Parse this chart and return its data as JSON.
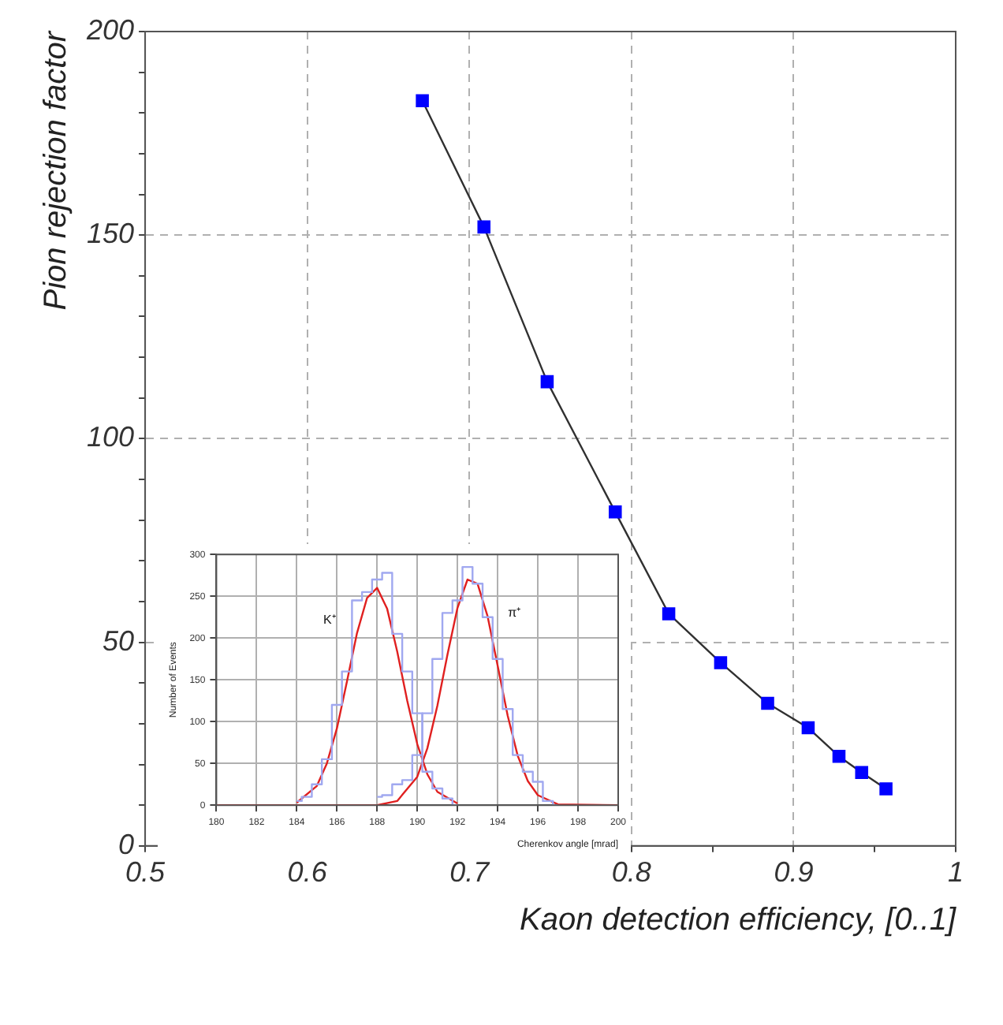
{
  "chart_data": [
    {
      "type": "line",
      "xlabel": "Kaon detection efficiency, [0..1]",
      "ylabel": "Pion rejection factor",
      "marker": "square",
      "line_style": "solid",
      "grid": true,
      "legend": false,
      "xlim": [
        0.5,
        1
      ],
      "ylim": [
        0,
        200
      ],
      "xticks": [
        0.5,
        {
          "value": 0.55,
          "label": null
        },
        0.6,
        {
          "value": 0.65,
          "label": null
        },
        0.7,
        {
          "value": 0.75,
          "label": null
        },
        0.8,
        {
          "value": 0.85,
          "label": null
        },
        0.9,
        {
          "value": 0.95,
          "label": null
        },
        1
      ],
      "yticks": [
        0,
        {
          "value": 10,
          "label": null
        },
        {
          "value": 20,
          "label": null
        },
        {
          "value": 30,
          "label": null
        },
        {
          "value": 40,
          "label": null
        },
        50,
        {
          "value": 60,
          "label": null
        },
        {
          "value": 70,
          "label": null
        },
        {
          "value": 80,
          "label": null
        },
        {
          "value": 90,
          "label": null
        },
        100,
        {
          "value": 110,
          "label": null
        },
        {
          "value": 120,
          "label": null
        },
        {
          "value": 130,
          "label": null
        },
        {
          "value": 140,
          "label": null
        },
        150,
        {
          "value": 160,
          "label": null
        },
        {
          "value": 170,
          "label": null
        },
        {
          "value": 180,
          "label": null
        },
        {
          "value": 190,
          "label": null
        },
        200
      ],
      "x": [
        0.671,
        0.709,
        0.748,
        0.79,
        0.823,
        0.855,
        0.884,
        0.909,
        0.928,
        0.942,
        0.957
      ],
      "series": [
        {
          "color": "#0000ff",
          "values": [
            183,
            152,
            114,
            82,
            57,
            45,
            35,
            29,
            22,
            18,
            14
          ]
        }
      ]
    },
    {
      "type": "line",
      "xlabel": "Cherenkov angle [mrad]",
      "ylabel": "Number of Events",
      "marker": "none",
      "line_style": "solid",
      "grid": true,
      "legend": false,
      "xlim": [
        180,
        200
      ],
      "ylim": [
        0,
        300
      ],
      "xticks": [
        180,
        182,
        184,
        186,
        188,
        190,
        192,
        194,
        196,
        198,
        200
      ],
      "yticks": [
        0,
        50,
        100,
        150,
        200,
        250,
        300
      ],
      "series": [
        {
          "type": "step",
          "color": "#a0a8f0",
          "x": [
            184,
            184.5,
            185,
            185.5,
            186,
            186.5,
            187,
            187.5,
            188,
            188.5,
            189,
            189.5,
            190,
            190.5,
            191,
            191.5,
            192
          ],
          "values": [
            5,
            10,
            25,
            55,
            120,
            160,
            245,
            255,
            270,
            278,
            205,
            160,
            110,
            40,
            20,
            8,
            0
          ]
        },
        {
          "type": "step",
          "color": "#a0a8f0",
          "x": [
            188,
            188.5,
            189,
            189.5,
            190,
            190.5,
            191,
            191.5,
            192,
            192.5,
            193,
            193.5,
            194,
            194.5,
            195,
            195.5,
            196,
            196.5,
            197
          ],
          "values": [
            10,
            12,
            25,
            30,
            60,
            110,
            175,
            230,
            245,
            285,
            265,
            225,
            175,
            115,
            60,
            40,
            28,
            5,
            0
          ]
        },
        {
          "name": "K⁺",
          "color": "#e02020",
          "x": [
            184,
            185,
            185.5,
            186,
            186.5,
            187,
            187.5,
            188,
            188.5,
            189,
            189.5,
            190,
            190.5,
            191,
            192
          ],
          "values": [
            3,
            23,
            50,
            92,
            148,
            206,
            248,
            260,
            235,
            184,
            125,
            73,
            37,
            16,
            2
          ]
        },
        {
          "name": "π⁺",
          "color": "#e02020",
          "x": [
            180,
            188,
            189,
            190,
            190.5,
            191,
            191.5,
            192,
            192.5,
            193,
            193.5,
            194,
            194.5,
            195,
            195.5,
            196,
            197,
            200
          ],
          "values": [
            0,
            0,
            5,
            34,
            68,
            119,
            180,
            236,
            270,
            265,
            226,
            167,
            107,
            59,
            29,
            12,
            1,
            0
          ]
        }
      ]
    }
  ]
}
